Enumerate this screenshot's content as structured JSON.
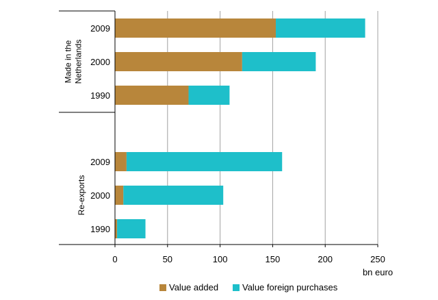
{
  "chart_data": {
    "type": "bar",
    "orientation": "horizontal",
    "stacked": true,
    "groups": [
      {
        "name_lines": [
          "Made in the",
          "Netherlands"
        ],
        "categories": [
          "2009",
          "2000",
          "1990"
        ],
        "series": [
          {
            "name": "Value added",
            "values": [
              153,
              121,
              70
            ]
          },
          {
            "name": "Value foreign purchases",
            "values": [
              85,
              70,
              39
            ]
          }
        ]
      },
      {
        "name_lines": [
          "Re-exports"
        ],
        "categories": [
          "2009",
          "2000",
          "1990"
        ],
        "series": [
          {
            "name": "Value added",
            "values": [
              11,
              8,
              2
            ]
          },
          {
            "name": "Value foreign purchases",
            "values": [
              148,
              95,
              27
            ]
          }
        ]
      }
    ],
    "x_ticks": [
      0,
      50,
      100,
      150,
      200,
      250
    ],
    "xlim": [
      0,
      250
    ],
    "xlabel": "bn euro",
    "grid": "vertical",
    "legend_position": "bottom",
    "colors": {
      "Value added": "#B8863B",
      "Value foreign purchases": "#1EBFCA"
    }
  }
}
